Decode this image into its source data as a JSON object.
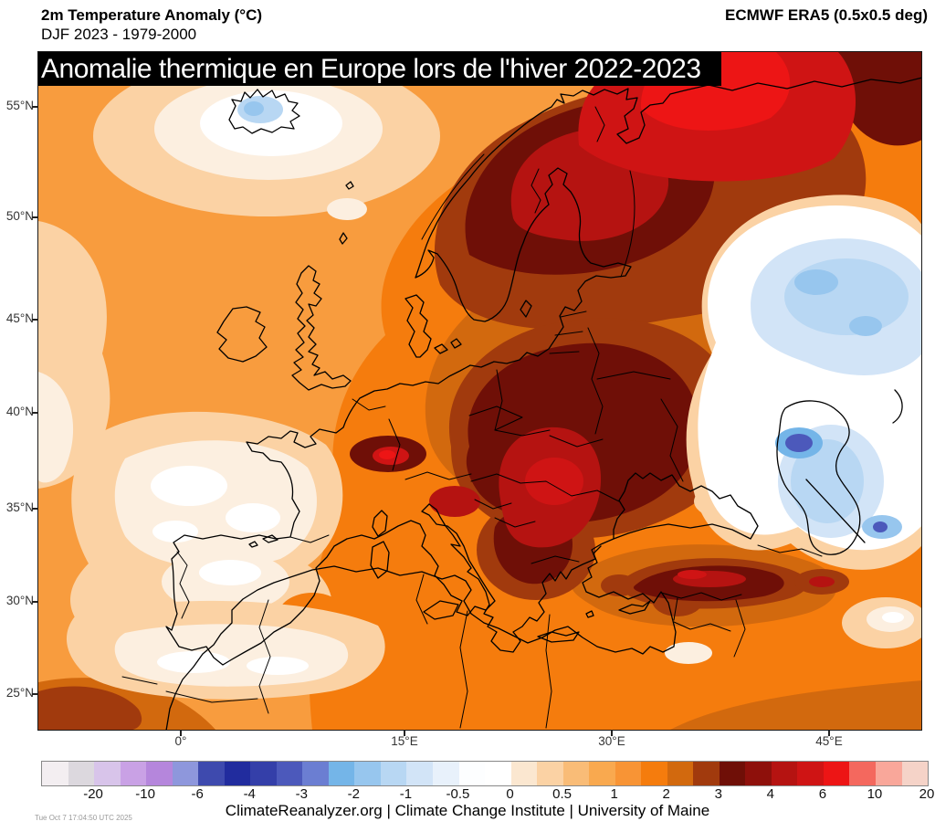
{
  "header": {
    "title": "2m Temperature Anomaly (°C)",
    "subtitle": "DJF 2023 - 1979-2000",
    "dataset": "ECMWF ERA5 (0.5x0.5 deg)"
  },
  "banner": {
    "text": "Anomalie thermique en Europe lors de l'hiver 2022-2023",
    "bg": "#000000",
    "fg": "#ffffff"
  },
  "map": {
    "lat_labels": [
      "55°N",
      "50°N",
      "45°N",
      "40°N",
      "35°N",
      "30°N",
      "25°N"
    ],
    "lon_labels": [
      "0°",
      "15°E",
      "30°E",
      "45°E"
    ],
    "palette": {
      "base": "#f89c3e",
      "orange_bright": "#f57c0d",
      "orange_deep": "#d2690e",
      "sienna": "#a13a0d",
      "maroon": "#6f0f07",
      "red_dark": "#8e100b",
      "red_mid": "#b51311",
      "red_bright": "#cf1414",
      "red_vivid": "#ed1515",
      "peach": "#fbd2a4",
      "cream": "#fcefe0",
      "white": "#ffffff",
      "blue_pale": "#e8f1fb",
      "blue_light": "#d2e4f7",
      "blue_sky": "#b8d7f3",
      "blue_mid": "#97c6ee",
      "blue_deep": "#74b5e8",
      "blue_violet": "#4c59bb",
      "coast": "#000000",
      "border": "#000000"
    }
  },
  "colorbar": {
    "tick_labels": [
      "-20",
      "-10",
      "-6",
      "-4",
      "-3",
      "-2",
      "-1",
      "-0.5",
      "0",
      "0.5",
      "1",
      "2",
      "3",
      "4",
      "6",
      "10",
      "20"
    ],
    "cell_colors": [
      "#f3eef1",
      "#dcd8de",
      "#d8c4ea",
      "#c9a1e5",
      "#b586dc",
      "#8e97dc",
      "#3e4aae",
      "#212c9e",
      "#343fa9",
      "#4c59bb",
      "#6b7ed2",
      "#74b5e8",
      "#97c6ee",
      "#b8d7f3",
      "#d2e4f7",
      "#e8f1fb",
      "#fdfeff",
      "#ffffff",
      "#fbe7d0",
      "#fbd2a4",
      "#f9bc77",
      "#f9a94f",
      "#f89435",
      "#f57c0d",
      "#d2690e",
      "#a13a0d",
      "#6f0f07",
      "#8e100b",
      "#b51311",
      "#cf1414",
      "#ed1515",
      "#f4685e",
      "#f9a79a",
      "#f5d3c8"
    ]
  },
  "footer": {
    "timestamp": "Tue Oct  7 17:04:50 UTC 2025",
    "credit": "ClimateReanalyzer.org | Climate Change Institute | University of Maine"
  }
}
